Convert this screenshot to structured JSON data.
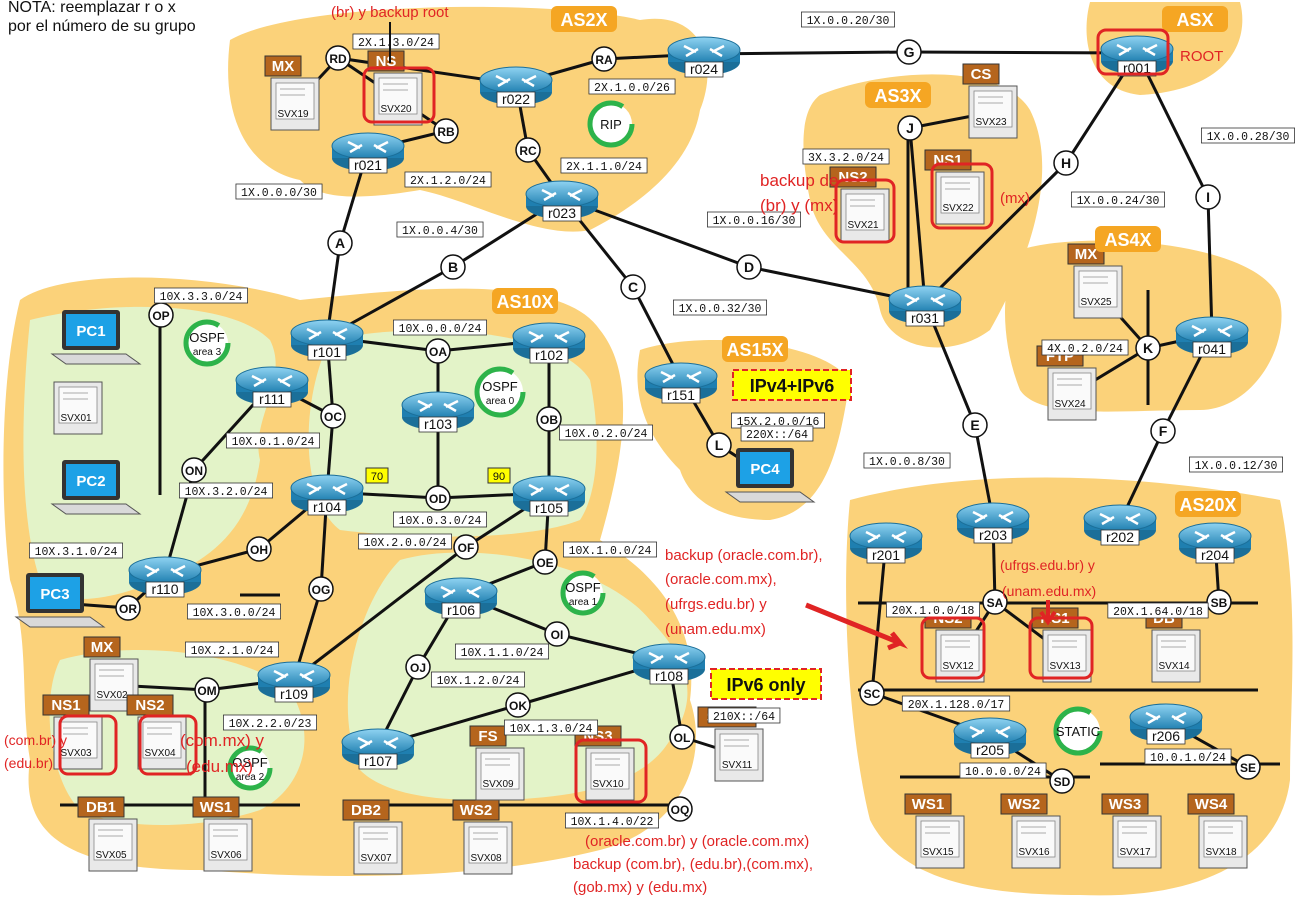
{
  "colors": {
    "as": "#fbd27a",
    "ospf": "#e3f3c8",
    "tag": "#b5651d",
    "asTag": "#f5a623",
    "router": "#2f9fd1",
    "red": "#e02424",
    "green": "#2db34a",
    "yellow": "#ffff00",
    "label": "#111111"
  },
  "notes": {
    "header1": "NOTA: reemplazar r o x",
    "header2": "por el número de su grupo",
    "top_red": "(br) y backup root",
    "root": "ROOT",
    "backup_de_1": "backup de",
    "backup_de_2": "(br) y (mx)",
    "mx_note": "(mx)",
    "mid1": "backup (oracle.com.br),",
    "mid2": "(oracle.com.mx),",
    "mid3": "(ufrgs.edu.br) y",
    "mid4": "(unam.edu.mx)",
    "ufrgs1": "(ufrgs.edu.br) y",
    "ufrgs2": "(unam.edu.mx)",
    "left1": "(com.br) y",
    "left2": "(edu.br)",
    "left3": "(com.mx) y",
    "left4": "(edu.mx)",
    "bottom1": "(oracle.com.br) y (oracle.com.mx)",
    "bottom2": "backup (com.br), (edu.br),(com.mx),",
    "bottom3": "(gob.mx) y (edu.mx)"
  },
  "as_labels": [
    {
      "id": "as2x",
      "text": "AS2X"
    },
    {
      "id": "asx",
      "text": "ASX"
    },
    {
      "id": "as3x",
      "text": "AS3X"
    },
    {
      "id": "as4x",
      "text": "AS4X"
    },
    {
      "id": "as10x",
      "text": "AS10X"
    },
    {
      "id": "as15x",
      "text": "AS15X"
    },
    {
      "id": "as20x",
      "text": "AS20X"
    }
  ],
  "routers": [
    {
      "id": "r001",
      "label": "r001"
    },
    {
      "id": "r024",
      "label": "r024"
    },
    {
      "id": "r022",
      "label": "r022"
    },
    {
      "id": "r021",
      "label": "r021"
    },
    {
      "id": "r023",
      "label": "r023"
    },
    {
      "id": "r031",
      "label": "r031"
    },
    {
      "id": "r041",
      "label": "r041"
    },
    {
      "id": "r101",
      "label": "r101"
    },
    {
      "id": "r102",
      "label": "r102"
    },
    {
      "id": "r103",
      "label": "r103"
    },
    {
      "id": "r104",
      "label": "r104"
    },
    {
      "id": "r105",
      "label": "r105"
    },
    {
      "id": "r111",
      "label": "r111"
    },
    {
      "id": "r110",
      "label": "r110"
    },
    {
      "id": "r106",
      "label": "r106"
    },
    {
      "id": "r108",
      "label": "r108"
    },
    {
      "id": "r107",
      "label": "r107"
    },
    {
      "id": "r109",
      "label": "r109"
    },
    {
      "id": "r151",
      "label": "r151"
    },
    {
      "id": "r201",
      "label": "r201"
    },
    {
      "id": "r203",
      "label": "r203"
    },
    {
      "id": "r202",
      "label": "r202"
    },
    {
      "id": "r204",
      "label": "r204"
    },
    {
      "id": "r205",
      "label": "r205"
    },
    {
      "id": "r206",
      "label": "r206"
    }
  ],
  "servers": [
    {
      "id": "svx20",
      "label": "SVX20",
      "role": "NS"
    },
    {
      "id": "svx19",
      "label": "SVX19",
      "role": "MX"
    },
    {
      "id": "svx23",
      "label": "SVX23",
      "role": "CS"
    },
    {
      "id": "svx21",
      "label": "SVX21",
      "role": "NS2"
    },
    {
      "id": "svx22",
      "label": "SVX22",
      "role": "NS1"
    },
    {
      "id": "svx25",
      "label": "SVX25",
      "role": "MX"
    },
    {
      "id": "svx24",
      "label": "SVX24",
      "role": "FTP"
    },
    {
      "id": "svx01",
      "label": "SVX01",
      "role": ""
    },
    {
      "id": "svx02",
      "label": "SVX02",
      "role": "MX"
    },
    {
      "id": "svx03",
      "label": "SVX03",
      "role": "NS1"
    },
    {
      "id": "svx04",
      "label": "SVX04",
      "role": "NS2"
    },
    {
      "id": "svx05",
      "label": "SVX05",
      "role": "DB1"
    },
    {
      "id": "svx06",
      "label": "SVX06",
      "role": "WS1"
    },
    {
      "id": "svx07",
      "label": "SVX07",
      "role": "DB2"
    },
    {
      "id": "svx08",
      "label": "SVX08",
      "role": "WS2"
    },
    {
      "id": "svx09",
      "label": "SVX09",
      "role": "FS"
    },
    {
      "id": "svx10",
      "label": "SVX10",
      "role": "NS3"
    },
    {
      "id": "svx11",
      "label": "SVX11",
      "role": "SSHS"
    },
    {
      "id": "svx12",
      "label": "SVX12",
      "role": "NS2"
    },
    {
      "id": "svx13",
      "label": "SVX13",
      "role": "NS1"
    },
    {
      "id": "svx14",
      "label": "SVX14",
      "role": "DB"
    },
    {
      "id": "svx15",
      "label": "SVX15",
      "role": "WS1"
    },
    {
      "id": "svx16",
      "label": "SVX16",
      "role": "WS2"
    },
    {
      "id": "svx17",
      "label": "SVX17",
      "role": "WS3"
    },
    {
      "id": "svx18",
      "label": "SVX18",
      "role": "WS4"
    }
  ],
  "pcs": [
    {
      "id": "pc1",
      "label": "PC1"
    },
    {
      "id": "pc2",
      "label": "PC2"
    },
    {
      "id": "pc3",
      "label": "PC3"
    },
    {
      "id": "pc4",
      "label": "PC4"
    }
  ],
  "link_nodes": [
    "G",
    "H",
    "I",
    "J",
    "A",
    "B",
    "C",
    "D",
    "E",
    "F",
    "K",
    "L",
    "RD",
    "RA",
    "RB",
    "RC",
    "OP",
    "OA",
    "OB",
    "OC",
    "OD",
    "OE",
    "OF",
    "OG",
    "OH",
    "OI",
    "OJ",
    "OK",
    "OL",
    "OM",
    "ON",
    "OQ",
    "OR",
    "SA",
    "SB",
    "SC",
    "SD",
    "SE"
  ],
  "subnets": [
    "2X.1.3.0/24",
    "2X.1.0.0/26",
    "2X.1.1.0/24",
    "2X.1.2.0/24",
    "1X.0.0.20/30",
    "1X.0.0.28/30",
    "1X.0.0.24/30",
    "3X.3.2.0/24",
    "1X.0.0.16/30",
    "1X.0.0.0/30",
    "1X.0.0.4/30",
    "1X.0.0.32/30",
    "10X.3.3.0/24",
    "10X.0.0.0/24",
    "10X.0.1.0/24",
    "10X.0.2.0/24",
    "10X.3.2.0/24",
    "10X.0.3.0/24",
    "10X.2.0.0/24",
    "10X.1.0.0/24",
    "10X.3.1.0/24",
    "10X.3.0.0/24",
    "10X.2.1.0/24",
    "10X.1.1.0/24",
    "10X.1.2.0/24",
    "10X.1.3.0/24",
    "10X.2.2.0/23",
    "10X.1.4.0/22",
    "210X::/64",
    "15X.2.0.0/16",
    "220X::/64",
    "4X.0.2.0/24",
    "1X.0.0.8/30",
    "1X.0.0.12/30",
    "20X.1.0.0/18",
    "20X.1.64.0/18",
    "20X.1.128.0/17",
    "10.0.0.0/24",
    "10.0.1.0/24"
  ],
  "tags": {
    "ipv4ipv6": "IPv4+IPv6",
    "ipv6only": "IPv6 only",
    "rip": "RIP",
    "ospf": "OSPF",
    "area0": "area 0",
    "area1": "area 1",
    "area2": "area 2",
    "area3": "area 3",
    "static": "STATIC",
    "cost70": "70",
    "cost90": "90"
  }
}
